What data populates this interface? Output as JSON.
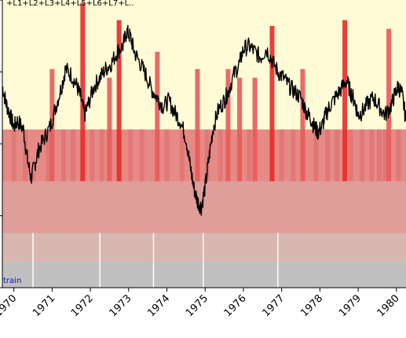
{
  "chart_data": {
    "type": "line",
    "title": "+L1+L2+L3+L4+L5+L6+L7+L..",
    "band_label": "train",
    "xlabel": "",
    "ylabel": "",
    "x_ticks": [
      "1970",
      "1971",
      "1972",
      "1973",
      "1974",
      "1975",
      "1976",
      "1977",
      "1978",
      "1979",
      "1980"
    ],
    "xlim": [
      1969.7,
      1980.25
    ],
    "ylim": [
      0,
      1
    ],
    "grid": false,
    "legend": "none",
    "series": [
      {
        "color": "#000000",
        "points": [
          [
            1969.7,
            0.7
          ],
          [
            1969.8,
            0.64
          ],
          [
            1969.9,
            0.6
          ],
          [
            1970.0,
            0.56
          ],
          [
            1970.1,
            0.58
          ],
          [
            1970.25,
            0.55
          ],
          [
            1970.35,
            0.45
          ],
          [
            1970.45,
            0.38
          ],
          [
            1970.55,
            0.43
          ],
          [
            1970.65,
            0.48
          ],
          [
            1970.8,
            0.52
          ],
          [
            1970.95,
            0.56
          ],
          [
            1971.1,
            0.63
          ],
          [
            1971.25,
            0.7
          ],
          [
            1971.35,
            0.76
          ],
          [
            1971.5,
            0.74
          ],
          [
            1971.65,
            0.7
          ],
          [
            1971.75,
            0.66
          ],
          [
            1971.85,
            0.6
          ],
          [
            1971.95,
            0.64
          ],
          [
            1972.1,
            0.7
          ],
          [
            1972.25,
            0.73
          ],
          [
            1972.4,
            0.76
          ],
          [
            1972.55,
            0.78
          ],
          [
            1972.7,
            0.82
          ],
          [
            1972.85,
            0.84
          ],
          [
            1972.95,
            0.89
          ],
          [
            1973.05,
            0.87
          ],
          [
            1973.15,
            0.82
          ],
          [
            1973.3,
            0.78
          ],
          [
            1973.45,
            0.74
          ],
          [
            1973.6,
            0.69
          ],
          [
            1973.75,
            0.66
          ],
          [
            1973.9,
            0.63
          ],
          [
            1974.05,
            0.65
          ],
          [
            1974.2,
            0.61
          ],
          [
            1974.35,
            0.58
          ],
          [
            1974.5,
            0.52
          ],
          [
            1974.6,
            0.43
          ],
          [
            1974.7,
            0.35
          ],
          [
            1974.8,
            0.3
          ],
          [
            1974.9,
            0.28
          ],
          [
            1975.0,
            0.35
          ],
          [
            1975.1,
            0.45
          ],
          [
            1975.2,
            0.55
          ],
          [
            1975.35,
            0.62
          ],
          [
            1975.5,
            0.65
          ],
          [
            1975.6,
            0.68
          ],
          [
            1975.75,
            0.74
          ],
          [
            1975.9,
            0.78
          ],
          [
            1976.0,
            0.83
          ],
          [
            1976.15,
            0.84
          ],
          [
            1976.3,
            0.82
          ],
          [
            1976.45,
            0.8
          ],
          [
            1976.6,
            0.83
          ],
          [
            1976.75,
            0.79
          ],
          [
            1976.9,
            0.75
          ],
          [
            1977.05,
            0.73
          ],
          [
            1977.2,
            0.7
          ],
          [
            1977.35,
            0.68
          ],
          [
            1977.5,
            0.66
          ],
          [
            1977.65,
            0.61
          ],
          [
            1977.75,
            0.59
          ],
          [
            1977.85,
            0.56
          ],
          [
            1977.95,
            0.54
          ],
          [
            1978.05,
            0.56
          ],
          [
            1978.15,
            0.6
          ],
          [
            1978.25,
            0.63
          ],
          [
            1978.4,
            0.66
          ],
          [
            1978.55,
            0.69
          ],
          [
            1978.7,
            0.72
          ],
          [
            1978.8,
            0.68
          ],
          [
            1978.9,
            0.65
          ],
          [
            1979.0,
            0.6
          ],
          [
            1979.1,
            0.61
          ],
          [
            1979.25,
            0.64
          ],
          [
            1979.4,
            0.66
          ],
          [
            1979.55,
            0.63
          ],
          [
            1979.7,
            0.6
          ],
          [
            1979.85,
            0.63
          ],
          [
            1979.95,
            0.67
          ],
          [
            1980.05,
            0.7
          ],
          [
            1980.15,
            0.67
          ],
          [
            1980.25,
            0.58
          ]
        ]
      }
    ],
    "bars": {
      "bottom_band_color": "#c0c0c0",
      "levels": [
        {
          "top": 0.19,
          "color": "#d2aaaa"
        },
        {
          "top": 0.37,
          "color": "#dc8c8c"
        },
        {
          "top": 0.55,
          "color": "#e07575"
        },
        {
          "top": 0.73,
          "color": "#e85a5a"
        },
        {
          "top": 0.93,
          "color": "#e82a2a"
        }
      ],
      "spikes": [
        {
          "x": 1970.0,
          "top": 0.55
        },
        {
          "x": 1970.3,
          "top": 0.55
        },
        {
          "x": 1970.5,
          "top": 0.4
        },
        {
          "x": 1970.9,
          "top": 0.55
        },
        {
          "x": 1971.0,
          "top": 0.76
        },
        {
          "x": 1971.3,
          "top": 0.55
        },
        {
          "x": 1971.55,
          "top": 0.55
        },
        {
          "x": 1971.8,
          "top": 0.99
        },
        {
          "x": 1972.05,
          "top": 0.55
        },
        {
          "x": 1972.3,
          "top": 0.55
        },
        {
          "x": 1972.5,
          "top": 0.73
        },
        {
          "x": 1972.75,
          "top": 0.93
        },
        {
          "x": 1973.05,
          "top": 0.55
        },
        {
          "x": 1973.35,
          "top": 0.55
        },
        {
          "x": 1973.75,
          "top": 0.82
        },
        {
          "x": 1974.0,
          "top": 0.55
        },
        {
          "x": 1974.4,
          "top": 0.55
        },
        {
          "x": 1974.8,
          "top": 0.76
        },
        {
          "x": 1975.05,
          "top": 0.55
        },
        {
          "x": 1975.4,
          "top": 0.55
        },
        {
          "x": 1975.6,
          "top": 0.76
        },
        {
          "x": 1975.9,
          "top": 0.73
        },
        {
          "x": 1976.15,
          "top": 0.55
        },
        {
          "x": 1976.3,
          "top": 0.73
        },
        {
          "x": 1976.75,
          "top": 0.91
        },
        {
          "x": 1977.0,
          "top": 0.55
        },
        {
          "x": 1977.3,
          "top": 0.55
        },
        {
          "x": 1977.55,
          "top": 0.76
        },
        {
          "x": 1977.9,
          "top": 0.55
        },
        {
          "x": 1978.2,
          "top": 0.55
        },
        {
          "x": 1978.45,
          "top": 0.55
        },
        {
          "x": 1978.65,
          "top": 0.93
        },
        {
          "x": 1978.8,
          "top": 0.55
        },
        {
          "x": 1979.1,
          "top": 0.55
        },
        {
          "x": 1979.35,
          "top": 0.55
        },
        {
          "x": 1979.55,
          "top": 0.55
        },
        {
          "x": 1979.7,
          "top": 0.55
        },
        {
          "x": 1979.8,
          "top": 0.9
        },
        {
          "x": 1980.05,
          "top": 0.55
        }
      ]
    },
    "plot_background": "#fffbd7",
    "line_color": "#000000"
  }
}
